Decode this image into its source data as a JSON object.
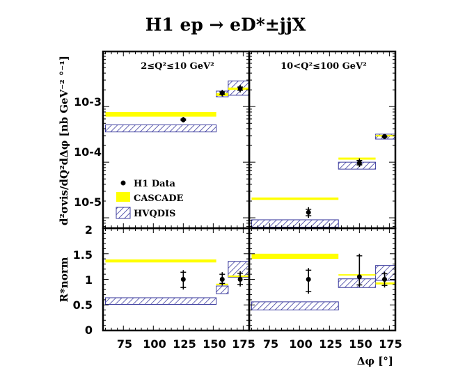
{
  "title": "H1   ep → eD*±jjX",
  "colors": {
    "cascade": "#ffff00",
    "hvqdis": "#3b3b9e",
    "data": "#000000"
  },
  "chart_data": {
    "type": "scatter",
    "title": "H1   ep → eD*±jjX",
    "xlabel": "Δφ [°]",
    "ylabel_top": "d²σvis/dQ²dΔφ [nb GeV⁻² °⁻¹]",
    "ylabel_bottom": "R*norm",
    "legend": {
      "placement": "lower-left of top-right panel",
      "entries": [
        "H1 Data",
        "CASCADE",
        "HVQDIS"
      ]
    },
    "x_ticks": [
      "75",
      "100",
      "125",
      "150",
      "175"
    ],
    "ratio_y_ticks": [
      "0",
      "0.5",
      "1",
      "1.5",
      "2"
    ],
    "xsec_y_ticks": [
      "10-3",
      "10-4",
      "10-5"
    ],
    "panels": [
      {
        "id": "xsec_low",
        "label": "2≤Q²≤10 GeV²",
        "scale": "log",
        "xlim": [
          58,
          180
        ],
        "ylim": [
          6.5e-06,
          0.0098
        ],
        "data": [
          {
            "x": 125,
            "y": 0.00058,
            "err_lo": 6e-05,
            "err_hi": 7e-05
          },
          {
            "x": 157.5,
            "y": 0.00175,
            "err_lo": 0.00022,
            "err_hi": 0.00025
          },
          {
            "x": 172.5,
            "y": 0.0021,
            "err_lo": 0.0003,
            "err_hi": 0.00035
          }
        ],
        "cascade": [
          {
            "x1": 60,
            "x2": 152.5,
            "y": 0.00073,
            "y_lo": 0.00066,
            "y_hi": 0.0008
          },
          {
            "x1": 152.5,
            "x2": 162.5,
            "y": 0.00165,
            "y_lo": 0.00155,
            "y_hi": 0.00175
          },
          {
            "x1": 162.5,
            "x2": 180,
            "y": 0.0021,
            "y_lo": 0.002,
            "y_hi": 0.0022
          }
        ],
        "hvqdis": [
          {
            "x1": 60,
            "x2": 152.5,
            "y_lo": 0.00035,
            "y_hi": 0.00047
          },
          {
            "x1": 152.5,
            "x2": 162.5,
            "y_lo": 0.0015,
            "y_hi": 0.0019
          },
          {
            "x1": 162.5,
            "x2": 180,
            "y_lo": 0.0016,
            "y_hi": 0.0029
          }
        ]
      },
      {
        "id": "xsec_high",
        "label": "10<Q²≤100 GeV²",
        "scale": "log",
        "xlim": [
          58,
          180
        ],
        "ylim": [
          6.5e-06,
          0.0098
        ],
        "data": [
          {
            "x": 107.5,
            "y": 1.25e-05,
            "err_lo": 2.5e-06,
            "err_hi": 3e-06
          },
          {
            "x": 150,
            "y": 9.7e-05,
            "err_lo": 1.5e-05,
            "err_hi": 2e-05
          },
          {
            "x": 171,
            "y": 0.00029,
            "err_lo": 3e-05,
            "err_hi": 3e-05
          }
        ],
        "cascade": [
          {
            "x1": 60,
            "x2": 132.5,
            "y": 2.2e-05,
            "y_lo": 2.1e-05,
            "y_hi": 2.32e-05
          },
          {
            "x1": 132.5,
            "x2": 163.5,
            "y": 0.000116,
            "y_lo": 0.000111,
            "y_hi": 0.000121
          },
          {
            "x1": 163.5,
            "x2": 180,
            "y": 0.0003,
            "y_lo": 0.00029,
            "y_hi": 0.00031
          }
        ],
        "hvqdis": [
          {
            "x1": 60,
            "x2": 132.5,
            "y_lo": 6.8e-06,
            "y_hi": 9.2e-06
          },
          {
            "x1": 132.5,
            "x2": 163.5,
            "y_lo": 7.5e-05,
            "y_hi": 0.0001
          },
          {
            "x1": 163.5,
            "x2": 180,
            "y_lo": 0.00026,
            "y_hi": 0.00032
          }
        ]
      },
      {
        "id": "ratio_low",
        "scale": "linear",
        "xlim": [
          58,
          180
        ],
        "ylim": [
          0,
          2
        ],
        "data": [
          {
            "x": 125,
            "y": 1.0,
            "err_lo": 0.2,
            "err_hi": 0.18
          },
          {
            "x": 157.5,
            "y": 1.0,
            "err_lo": 0.12,
            "err_hi": 0.14
          },
          {
            "x": 172.5,
            "y": 1.0,
            "err_lo": 0.14,
            "err_hi": 0.16
          }
        ],
        "cascade": [
          {
            "x1": 60,
            "x2": 152.5,
            "y": 1.36,
            "y_lo": 1.33,
            "y_hi": 1.39
          },
          {
            "x1": 152.5,
            "x2": 162.5,
            "y": 0.9,
            "y_lo": 0.885,
            "y_hi": 0.915
          },
          {
            "x1": 162.5,
            "x2": 180,
            "y": 1.06,
            "y_lo": 1.045,
            "y_hi": 1.075
          }
        ],
        "hvqdis": [
          {
            "x1": 60,
            "x2": 152.5,
            "y_lo": 0.51,
            "y_hi": 0.64
          },
          {
            "x1": 152.5,
            "x2": 162.5,
            "y_lo": 0.72,
            "y_hi": 0.87
          },
          {
            "x1": 162.5,
            "x2": 180,
            "y_lo": 1.04,
            "y_hi": 1.35
          }
        ]
      },
      {
        "id": "ratio_high",
        "scale": "linear",
        "xlim": [
          58,
          180
        ],
        "ylim": [
          0,
          2
        ],
        "data": [
          {
            "x": 107.5,
            "y": 1.0,
            "err_lo": 0.28,
            "err_hi": 0.22
          },
          {
            "x": 150,
            "y": 1.05,
            "err_lo": 0.2,
            "err_hi": 0.45
          },
          {
            "x": 171,
            "y": 1.0,
            "err_lo": 0.16,
            "err_hi": 0.15
          }
        ],
        "cascade": [
          {
            "x1": 60,
            "x2": 132.5,
            "y": 1.45,
            "y_lo": 1.4,
            "y_hi": 1.5
          },
          {
            "x1": 132.5,
            "x2": 163.5,
            "y": 1.09,
            "y_lo": 1.08,
            "y_hi": 1.1
          },
          {
            "x1": 163.5,
            "x2": 180,
            "y": 0.92,
            "y_lo": 0.9,
            "y_hi": 0.94
          }
        ],
        "hvqdis": [
          {
            "x1": 60,
            "x2": 132.5,
            "y_lo": 0.4,
            "y_hi": 0.56
          },
          {
            "x1": 132.5,
            "x2": 163.5,
            "y_lo": 0.84,
            "y_hi": 1.01
          },
          {
            "x1": 163.5,
            "x2": 180,
            "y_lo": 0.98,
            "y_hi": 1.27
          }
        ]
      }
    ]
  }
}
